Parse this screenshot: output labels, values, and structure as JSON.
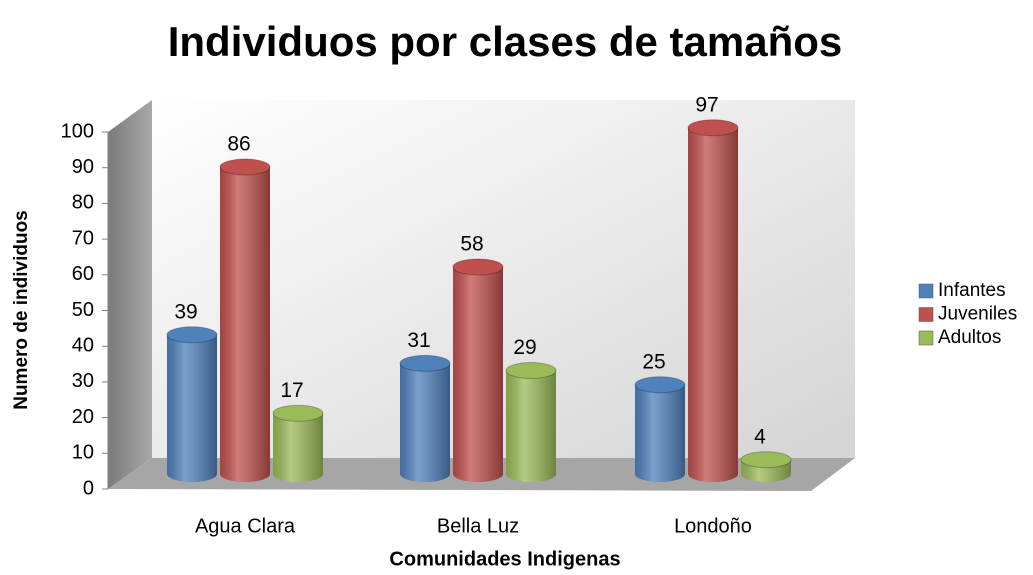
{
  "chart_data": {
    "type": "bar3d",
    "title": "Individuos por clases de tamaños",
    "x_label": "Comunidades Indigenas",
    "y_label": "Numero de individuos",
    "categories": [
      "Agua Clara",
      "Bella Luz",
      "Londoño"
    ],
    "series": [
      {
        "name": "Infantes",
        "color": "#4f81bd",
        "values": [
          39,
          31,
          25
        ]
      },
      {
        "name": "Juveniles",
        "color": "#c0504d",
        "values": [
          86,
          58,
          97
        ]
      },
      {
        "name": "Adultos",
        "color": "#9bbb59",
        "values": [
          17,
          29,
          4
        ]
      }
    ],
    "ylim": [
      0,
      100
    ],
    "yticks": [
      0,
      10,
      20,
      30,
      40,
      50,
      60,
      70,
      80,
      90,
      100
    ],
    "legend": "right"
  }
}
